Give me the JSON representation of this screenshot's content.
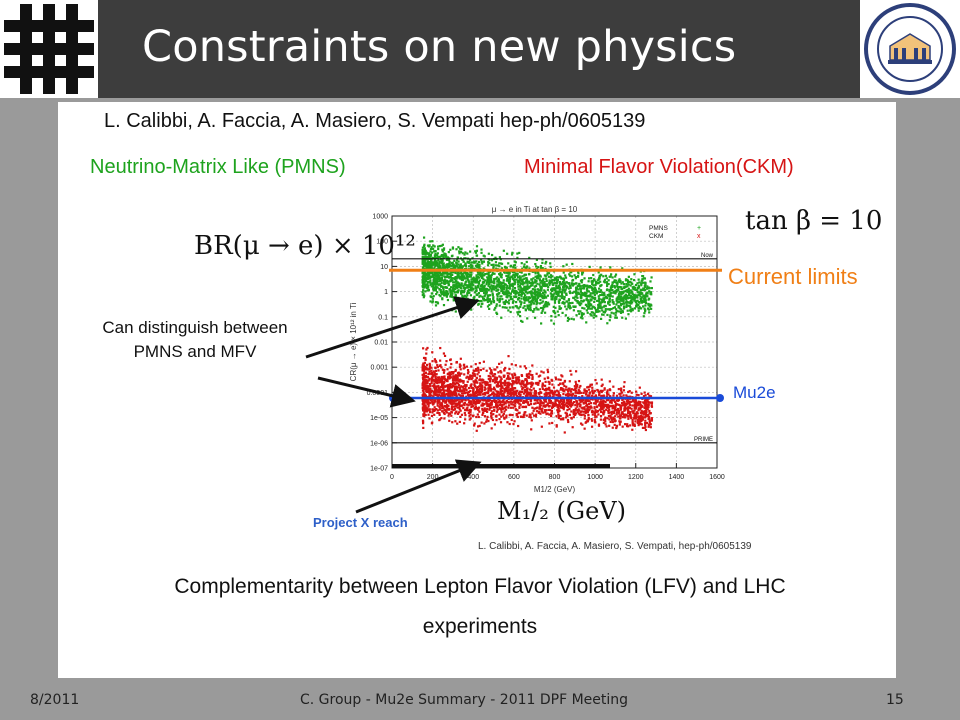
{
  "slide": {
    "title": "Constraints on new physics",
    "citation": "L. Calibbi, A. Faccia, A. Masiero, S. Vempati hep-ph/0605139",
    "pmns_label": "Neutrino-Matrix Like (PMNS)",
    "mfv_label": "Minimal Flavor Violation(CKM)",
    "current_limits": "Current limits",
    "mu2e": "Mu2e",
    "distinguish": "Can distinguish between PMNS and MFV",
    "project_x": "Project X reach",
    "plot_citation": "L. Calibbi, A. Faccia, A. Masiero, S. Vempati, hep-ph/0605139",
    "conclusion": "Complementarity between Lepton Flavor Violation (LFV) and LHC experiments",
    "tan_beta": "tan β = 10",
    "br_label": "BR(μ → e) × 10¹²",
    "mhalf_label": "M₁/₂ (GeV)"
  },
  "footer": {
    "date": "8/2011",
    "center": "C. Group - Mu2e Summary - 2011 DPF Meeting",
    "page": "15"
  },
  "colors": {
    "pmns": "#1ea31e",
    "mfv": "#d61414",
    "current_limits": "#f07f16",
    "mu2e": "#1a4bd8",
    "project_x": "#2d5fc8"
  },
  "chart_data": {
    "type": "scatter",
    "title": "μ → e in Ti at tan β = 10",
    "xlabel": "M1/2 (GeV)",
    "ylabel": "CR(μ → e) × 10¹² in Ti",
    "xlim": [
      0,
      1600
    ],
    "ylim": [
      1e-07,
      1000
    ],
    "yscale": "log",
    "x_ticks": [
      0,
      200,
      400,
      600,
      800,
      1000,
      1200,
      1400,
      1600
    ],
    "y_ticks": [
      "1e-07",
      "1e-06",
      "1e-05",
      "0.0001",
      "0.001",
      "0.01",
      "0.1",
      "1",
      "10",
      "100",
      "1000"
    ],
    "grid": true,
    "legend": {
      "position": "top-right",
      "entries": [
        "PMNS",
        "CKM"
      ]
    },
    "series": [
      {
        "name": "PMNS",
        "color": "#1ea31e",
        "x_range": [
          150,
          1280
        ],
        "upper_envelope": [
          [
            150,
            300
          ],
          [
            300,
            150
          ],
          [
            600,
            60
          ],
          [
            900,
            25
          ],
          [
            1280,
            10
          ]
        ],
        "lower_envelope": [
          [
            150,
            0.2
          ],
          [
            300,
            0.08
          ],
          [
            600,
            0.04
          ],
          [
            900,
            0.03
          ],
          [
            1280,
            0.05
          ]
        ]
      },
      {
        "name": "CKM",
        "color": "#d61414",
        "x_range": [
          150,
          1280
        ],
        "upper_envelope": [
          [
            150,
            0.01
          ],
          [
            300,
            0.005
          ],
          [
            600,
            0.003
          ],
          [
            900,
            0.001
          ],
          [
            1280,
            0.0002
          ]
        ],
        "lower_envelope": [
          [
            150,
            2e-06
          ],
          [
            300,
            2e-06
          ],
          [
            600,
            3e-06
          ],
          [
            900,
            2e-06
          ],
          [
            1280,
            1.5e-06
          ]
        ]
      }
    ],
    "annotations": [
      {
        "label": "Now",
        "y": 20
      },
      {
        "label": "PRIME",
        "y": 1e-06
      },
      {
        "label": "Current limits",
        "y": 7
      },
      {
        "label": "Mu2e",
        "y": 6e-05
      }
    ]
  }
}
